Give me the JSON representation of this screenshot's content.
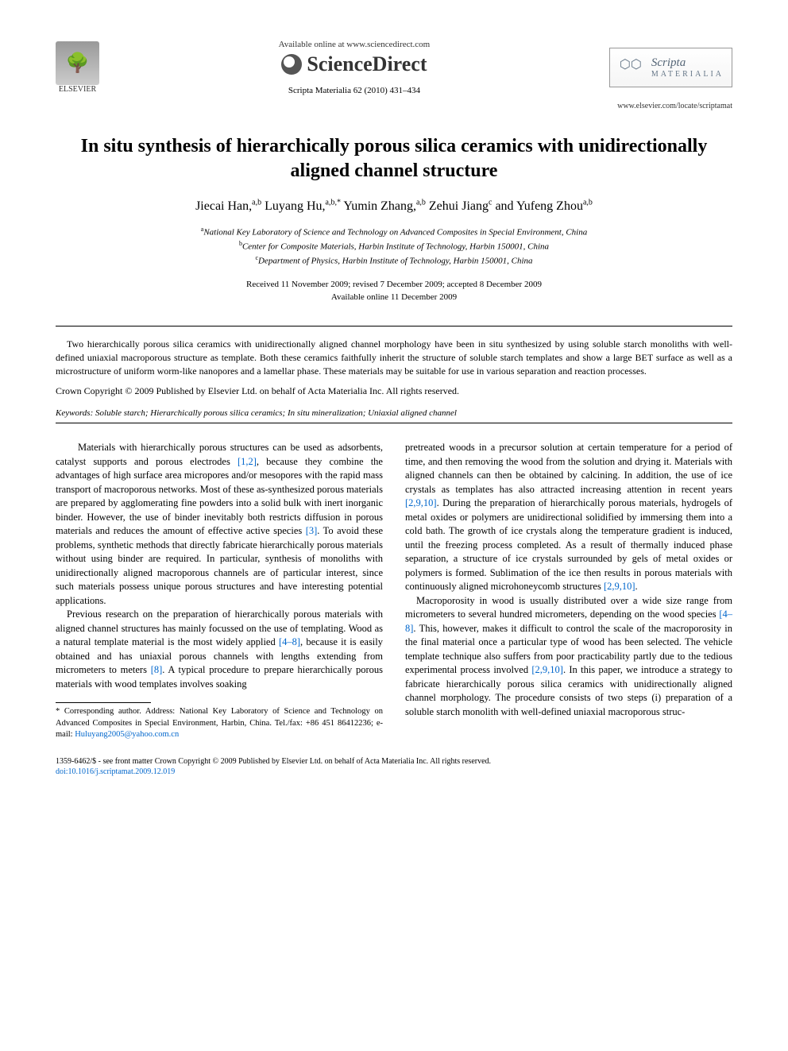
{
  "header": {
    "publisher_name": "ELSEVIER",
    "available_text": "Available online at www.sciencedirect.com",
    "platform_name": "ScienceDirect",
    "journal_ref": "Scripta Materialia 62 (2010) 431–434",
    "journal_name": "Scripta",
    "journal_name_sub": "MATERIALIA",
    "journal_url": "www.elsevier.com/locate/scriptamat"
  },
  "title": "In situ synthesis of hierarchically porous silica ceramics with unidirectionally aligned channel structure",
  "authors": [
    {
      "name": "Jiecai Han,",
      "sup": "a,b"
    },
    {
      "name": " Luyang Hu,",
      "sup": "a,b,*"
    },
    {
      "name": " Yumin Zhang,",
      "sup": "a,b"
    },
    {
      "name": " Zehui Jiang",
      "sup": "c"
    },
    {
      "name": " and Yufeng Zhou",
      "sup": "a,b"
    }
  ],
  "affiliations": [
    {
      "sup": "a",
      "text": "National Key Laboratory of Science and Technology on Advanced Composites in Special Environment, China"
    },
    {
      "sup": "b",
      "text": "Center for Composite Materials, Harbin Institute of Technology, Harbin 150001, China"
    },
    {
      "sup": "c",
      "text": "Department of Physics, Harbin Institute of Technology, Harbin 150001, China"
    }
  ],
  "dates": {
    "line1": "Received 11 November 2009; revised 7 December 2009; accepted 8 December 2009",
    "line2": "Available online 11 December 2009"
  },
  "abstract": "Two hierarchically porous silica ceramics with unidirectionally aligned channel morphology have been in situ synthesized by using soluble starch monoliths with well-defined uniaxial macroporous structure as template. Both these ceramics faithfully inherit the structure of soluble starch templates and show a large BET surface as well as a microstructure of uniform worm-like nanopores and a lamellar phase. These materials may be suitable for use in various separation and reaction processes.",
  "copyright": "Crown Copyright © 2009 Published by Elsevier Ltd. on behalf of Acta Materialia Inc. All rights reserved.",
  "keywords_label": "Keywords:",
  "keywords": " Soluble starch; Hierarchically porous silica ceramics; In situ mineralization; Uniaxial aligned channel",
  "body": {
    "col1": {
      "p1a": "Materials with hierarchically porous structures can be used as adsorbents, catalyst supports and porous electrodes ",
      "p1_ref1": "[1,2]",
      "p1b": ", because they combine the advantages of high surface area micropores and/or mesopores with the rapid mass transport of macroporous networks. Most of these as-synthesized porous materials are prepared by agglomerating fine powders into a solid bulk with inert inorganic binder. However, the use of binder inevitably both restricts diffusion in porous materials and reduces the amount of effective active species ",
      "p1_ref2": "[3]",
      "p1c": ". To avoid these problems, synthetic methods that directly fabricate hierarchically porous materials without using binder are required. In particular, synthesis of monoliths with unidirectionally aligned macroporous channels are of particular interest, since such materials possess unique porous structures and have interesting potential applications.",
      "p2a": "Previous research on the preparation of hierarchically porous materials with aligned channel structures has mainly focussed on the use of templating. Wood as a natural template material is the most widely applied ",
      "p2_ref1": "[4–8]",
      "p2b": ", because it is easily obtained and has uniaxial porous channels with lengths extending from micrometers to meters ",
      "p2_ref2": "[8]",
      "p2c": ". A typical procedure to prepare hierarchically porous materials with wood templates involves soaking"
    },
    "col2": {
      "p1a": "pretreated woods in a precursor solution at certain temperature for a period of time, and then removing the wood from the solution and drying it. Materials with aligned channels can then be obtained by calcining. In addition, the use of ice crystals as templates has also attracted increasing attention in recent years ",
      "p1_ref1": "[2,9,10]",
      "p1b": ". During the preparation of hierarchically porous materials, hydrogels of metal oxides or polymers are unidirectional solidified by immersing them into a cold bath. The growth of ice crystals along the temperature gradient is induced, until the freezing process completed. As a result of thermally induced phase separation, a structure of ice crystals surrounded by gels of metal oxides or polymers is formed. Sublimation of the ice then results in porous materials with continuously aligned microhoneycomb structures ",
      "p1_ref2": "[2,9,10]",
      "p1c": ".",
      "p2a": "Macroporosity in wood is usually distributed over a wide size range from micrometers to several hundred micrometers, depending on the wood species ",
      "p2_ref1": "[4–8]",
      "p2b": ". This, however, makes it difficult to control the scale of the macroporosity in the final material once a particular type of wood has been selected. The vehicle template technique also suffers from poor practicability partly due to the tedious experimental process involved ",
      "p2_ref2": "[2,9,10]",
      "p2c": ". In this paper, we introduce a strategy to fabricate hierarchically porous silica ceramics with unidirectionally aligned channel morphology. The procedure consists of two steps (i) preparation of a soluble starch monolith with well-defined uniaxial macroporous struc-"
    }
  },
  "footnote": {
    "marker": "*",
    "text": " Corresponding author. Address: National Key Laboratory of Science and Technology on Advanced Composites in Special Environment, Harbin, China. Tel./fax: +86 451 86412236; e-mail: ",
    "email": "Huluyang2005@yahoo.com.cn"
  },
  "footer": {
    "line1": "1359-6462/$ - see front matter Crown Copyright © 2009 Published by Elsevier Ltd. on behalf of Acta Materialia Inc. All rights reserved.",
    "doi": "doi:10.1016/j.scriptamat.2009.12.019"
  }
}
